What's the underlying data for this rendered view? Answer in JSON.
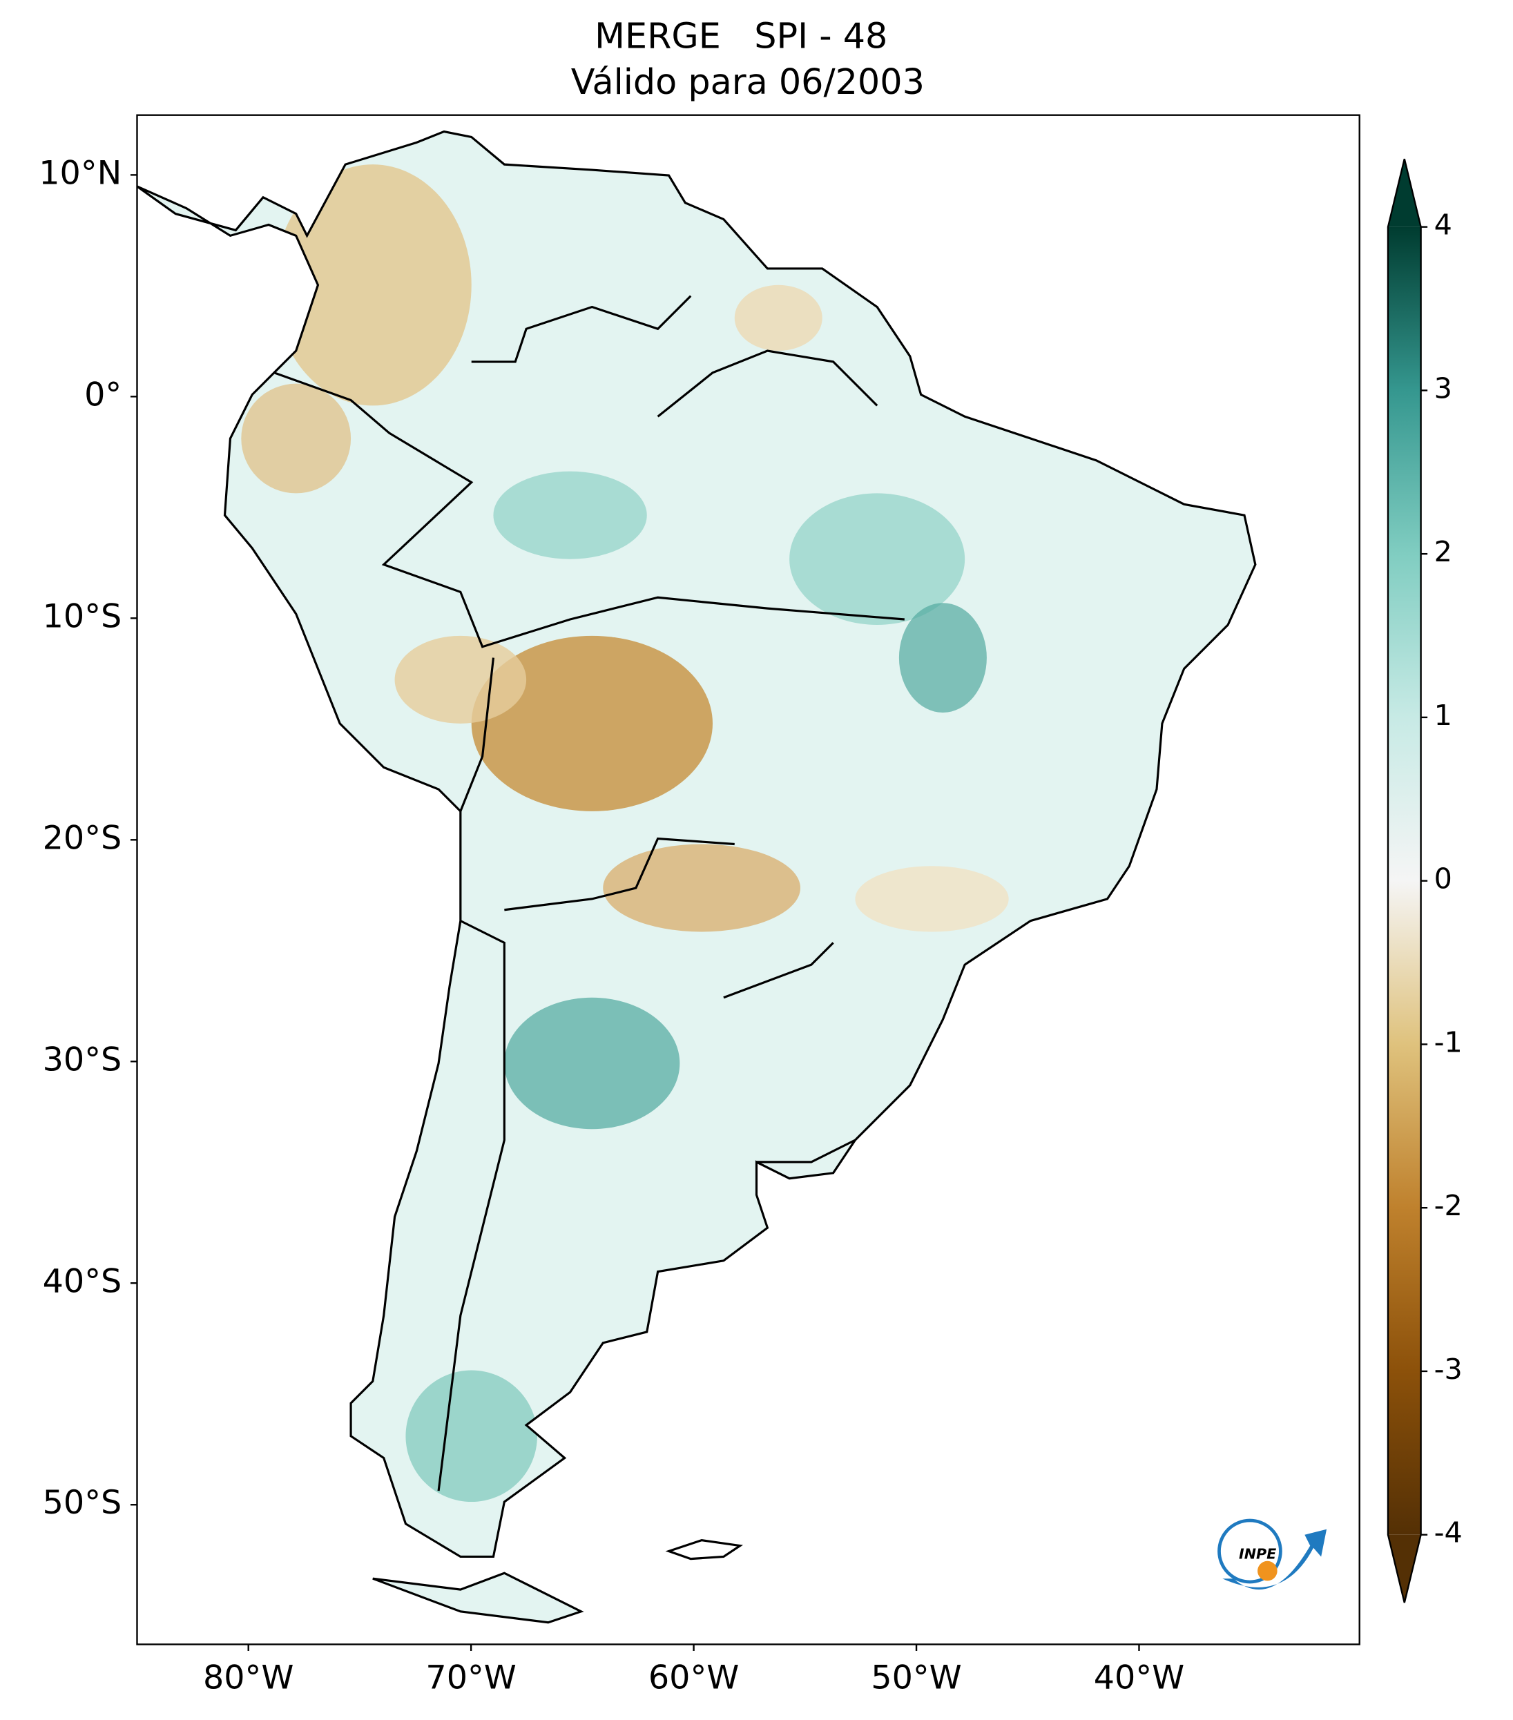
{
  "map": {
    "title": "MERGE   SPI - 48",
    "subtitle": "Válido para 06/2003",
    "xlim": [
      -85,
      -30.1
    ],
    "ylim": [
      -56.3,
      12.7
    ],
    "lat_ticks": [
      {
        "value": 10,
        "label": "10°N"
      },
      {
        "value": 0,
        "label": "0°"
      },
      {
        "value": -10,
        "label": "10°S"
      },
      {
        "value": -20,
        "label": "20°S"
      },
      {
        "value": -30,
        "label": "30°S"
      },
      {
        "value": -40,
        "label": "40°S"
      },
      {
        "value": -50,
        "label": "50°S"
      }
    ],
    "lon_ticks": [
      {
        "value": -80,
        "label": "80°W"
      },
      {
        "value": -70,
        "label": "70°W"
      },
      {
        "value": -60,
        "label": "60°W"
      },
      {
        "value": -50,
        "label": "50°W"
      },
      {
        "value": -40,
        "label": "40°W"
      }
    ],
    "colorbar": {
      "lim": [
        -4,
        4
      ],
      "ticks": [
        4,
        3,
        2,
        1,
        0,
        -1,
        -2,
        -3,
        -4
      ],
      "colors": [
        "#543005",
        "#8c510a",
        "#bf812d",
        "#dfc27d",
        "#f5f5f5",
        "#c7eae5",
        "#80cdc1",
        "#35978f",
        "#003c30"
      ]
    },
    "logo": "INPE"
  }
}
